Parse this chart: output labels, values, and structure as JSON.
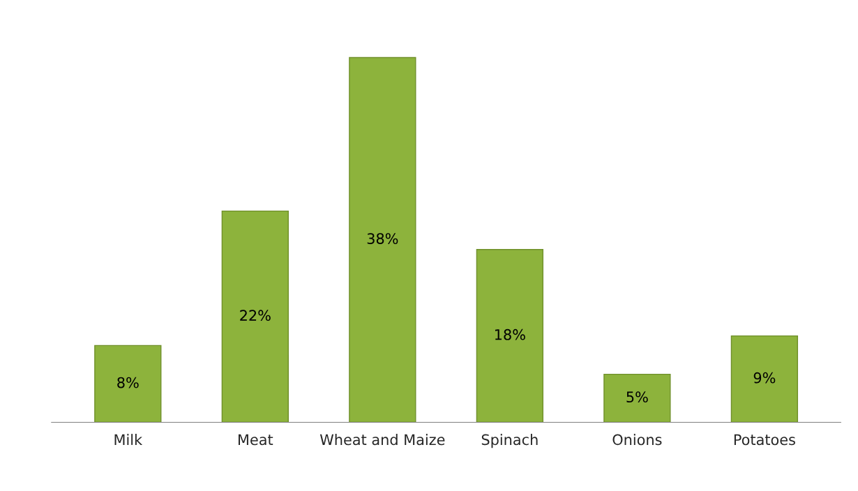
{
  "chart_data": {
    "type": "bar",
    "categories": [
      "Milk",
      "Meat",
      "Wheat and Maize",
      "Spinach",
      "Onions",
      "Potatoes"
    ],
    "values": [
      8,
      22,
      38,
      18,
      5,
      9
    ],
    "value_labels": [
      "8%",
      "22%",
      "38%",
      "18%",
      "5%",
      "9%"
    ],
    "color": "#8db33c",
    "grid": false,
    "legend": false
  }
}
